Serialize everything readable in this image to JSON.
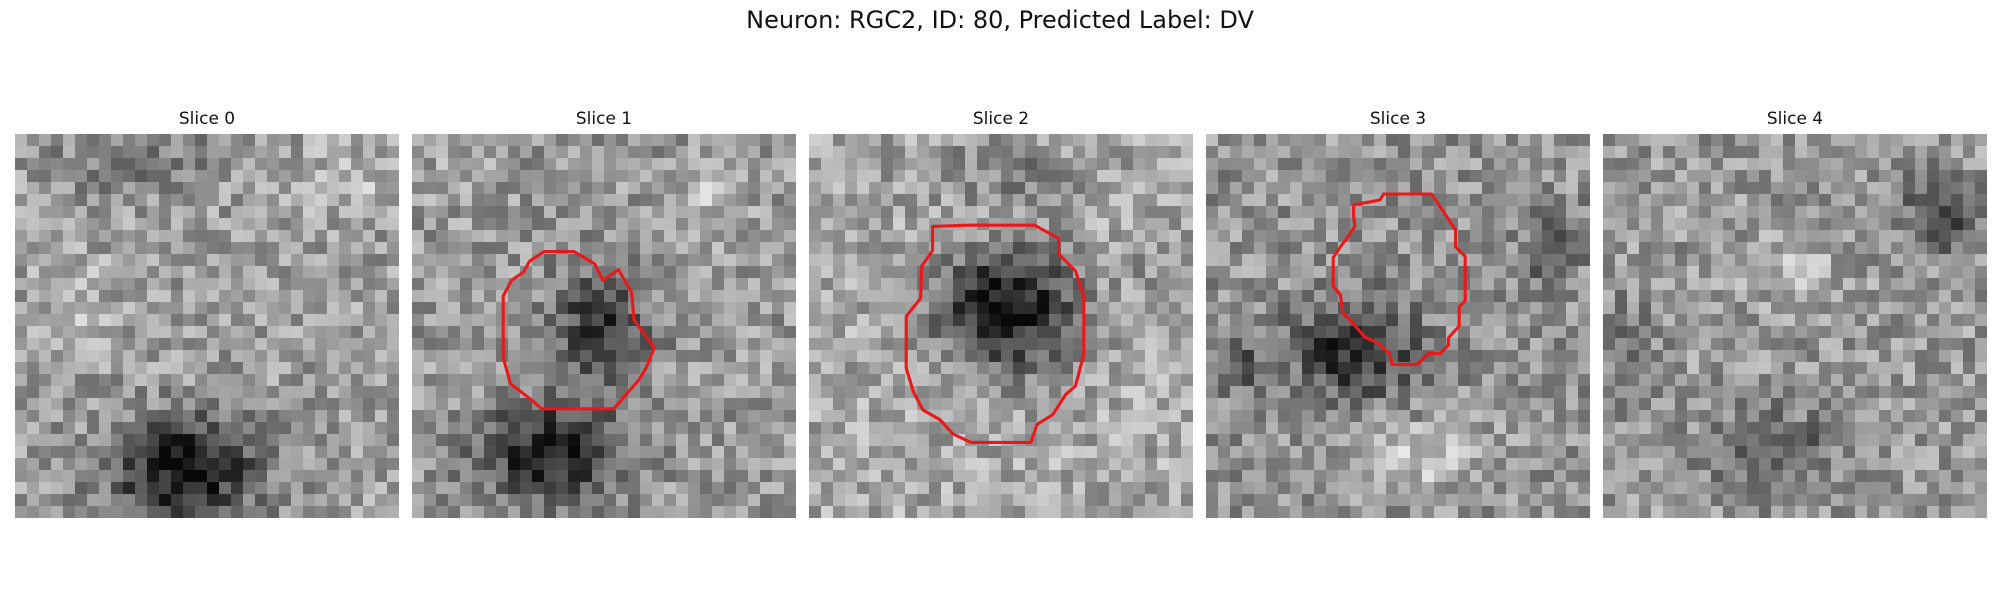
{
  "figure": {
    "title": "Neuron: RGC2, ID: 80, Predicted Label: DV",
    "contour_color": "#e8191b"
  },
  "slices": [
    {
      "label": "Slice 0"
    },
    {
      "label": "Slice 1"
    },
    {
      "label": "Slice 2"
    },
    {
      "label": "Slice 3"
    },
    {
      "label": "Slice 4"
    }
  ]
}
